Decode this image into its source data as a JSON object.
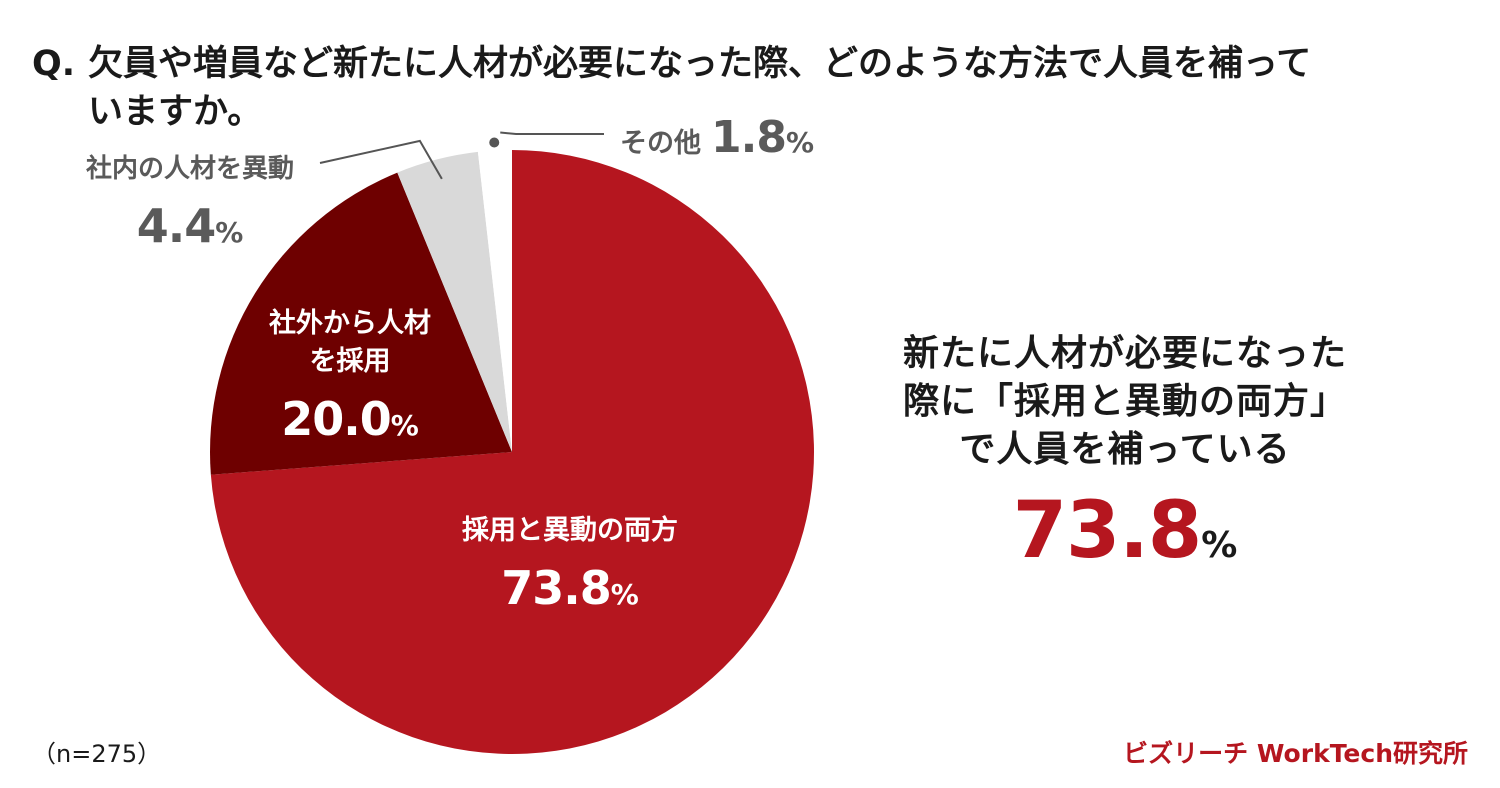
{
  "question": {
    "prefix": "Q.",
    "line1": "欠員や増員など新たに人材が必要になった際、どのような方法で人員を補って",
    "line2": "いますか。"
  },
  "chart_data": {
    "type": "pie",
    "start": "12 o'clock",
    "direction": "clockwise",
    "slices": [
      {
        "label": "採用と異動の両方",
        "value": 73.8,
        "value_label": "73.8",
        "unit": "%",
        "color": "#b5161f"
      },
      {
        "label_lines": [
          "社外から人材",
          "を採用"
        ],
        "label": "社外から人材を採用",
        "value": 20.0,
        "value_label": "20.0",
        "unit": "%",
        "color": "#6e0000"
      },
      {
        "label": "社内の人材を異動",
        "value": 4.4,
        "value_label": "4.4",
        "unit": "%",
        "color": "#d9d9d9"
      },
      {
        "label": "その他",
        "value": 1.8,
        "value_label": "1.8",
        "unit": "%",
        "color": "#ffffff"
      }
    ]
  },
  "highlight": {
    "lines": [
      "新たに人材が必要になった",
      "際に「採用と異動の両方」",
      "で人員を補っている"
    ],
    "value": "73.8",
    "unit": "%"
  },
  "footer": {
    "sample": "（n=275）",
    "brand": "ビズリーチ WorkTech研究所"
  },
  "colors": {
    "accent": "#b5161f",
    "dark_red": "#6e0000",
    "light_gray": "#d9d9d9",
    "callout_gray": "#5a5a5a",
    "leader_line": "#555555"
  }
}
